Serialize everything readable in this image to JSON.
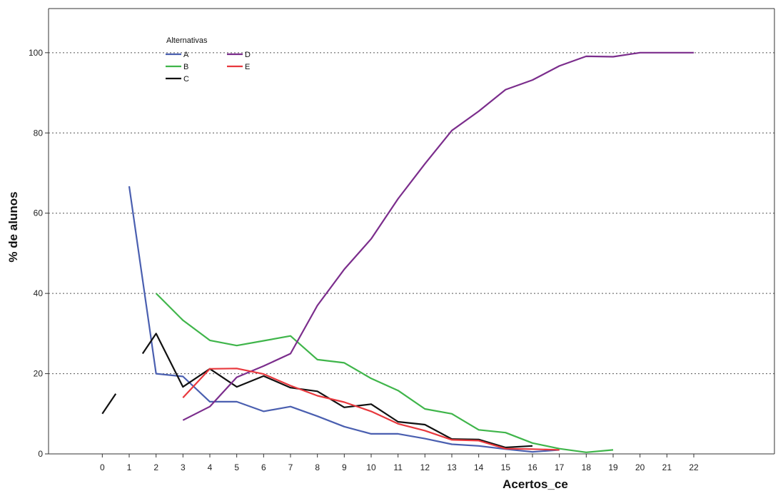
{
  "chart_data": {
    "type": "line",
    "xlabel": "Acertos_ce",
    "ylabel": "% de alunos",
    "x_ticks": [
      "0",
      "1",
      "2",
      "3",
      "4",
      "5",
      "6",
      "7",
      "8",
      "9",
      "10",
      "11",
      "12",
      "13",
      "14",
      "15",
      "16",
      "17",
      "18",
      "19",
      "20",
      "21",
      "22"
    ],
    "y_ticks": [
      "0",
      "20",
      "40",
      "60",
      "80",
      "100"
    ],
    "xlim": [
      -2,
      25
    ],
    "ylim": [
      0,
      111
    ],
    "grid": "horizontal dotted at y ticks",
    "legend": {
      "title": "Alternativas",
      "placement": "top-left"
    },
    "series": [
      {
        "name": "A",
        "color": "#4a5fb0",
        "segments": [
          [
            [
              1,
              66.7
            ],
            [
              2,
              20
            ],
            [
              3,
              19.3
            ],
            [
              4,
              13
            ],
            [
              5,
              13
            ],
            [
              6,
              10.6
            ],
            [
              7,
              11.8
            ],
            [
              8,
              9.4
            ],
            [
              9,
              6.8
            ],
            [
              10,
              5
            ],
            [
              11,
              5
            ],
            [
              12,
              3.8
            ],
            [
              13,
              2.4
            ],
            [
              14,
              2
            ],
            [
              15,
              1.2
            ],
            [
              16,
              0.5
            ],
            [
              17,
              1
            ]
          ]
        ]
      },
      {
        "name": "B",
        "color": "#3fb54a",
        "segments": [
          [
            [
              2,
              40
            ],
            [
              3,
              33.3
            ],
            [
              4,
              28.3
            ],
            [
              5,
              27
            ],
            [
              6,
              28.2
            ],
            [
              7,
              29.4
            ],
            [
              8,
              23.5
            ],
            [
              9,
              22.7
            ],
            [
              10,
              18.8
            ],
            [
              11,
              15.8
            ],
            [
              12,
              11.2
            ],
            [
              13,
              10
            ],
            [
              14,
              6
            ],
            [
              15,
              5.3
            ],
            [
              16,
              2.7
            ],
            [
              17,
              1.3
            ],
            [
              18,
              0.4
            ],
            [
              19,
              1
            ]
          ]
        ]
      },
      {
        "name": "C",
        "color": "#111111",
        "segments": [
          [
            [
              0,
              10
            ],
            [
              0.5,
              15
            ]
          ],
          [
            [
              1.5,
              25
            ],
            [
              2,
              30
            ],
            [
              3,
              16.7
            ],
            [
              4,
              21.2
            ],
            [
              5,
              16.7
            ],
            [
              6,
              19.4
            ],
            [
              7,
              16.5
            ],
            [
              8,
              15.6
            ],
            [
              9,
              11.6
            ],
            [
              10,
              12.4
            ],
            [
              11,
              8
            ],
            [
              12,
              7.3
            ],
            [
              13,
              3.7
            ],
            [
              14,
              3.6
            ],
            [
              15,
              1.6
            ],
            [
              16,
              2
            ]
          ]
        ]
      },
      {
        "name": "D",
        "color": "#7b2d8c",
        "segments": [
          [
            [
              3,
              8.4
            ],
            [
              4,
              11.8
            ],
            [
              5,
              19.1
            ],
            [
              6,
              21.9
            ],
            [
              7,
              25
            ],
            [
              8,
              37
            ],
            [
              9,
              46
            ],
            [
              10,
              53.6
            ],
            [
              11,
              63.6
            ],
            [
              12,
              72.3
            ],
            [
              13,
              80.6
            ],
            [
              14,
              85.4
            ],
            [
              15,
              90.8
            ],
            [
              16,
              93.2
            ],
            [
              17,
              96.7
            ],
            [
              18,
              99.1
            ],
            [
              19,
              99
            ],
            [
              20,
              100
            ],
            [
              21,
              100
            ],
            [
              22,
              100
            ]
          ]
        ]
      },
      {
        "name": "E",
        "color": "#e8383d",
        "segments": [
          [
            [
              3,
              14
            ],
            [
              4,
              21.2
            ],
            [
              5,
              21.3
            ],
            [
              6,
              19.9
            ],
            [
              7,
              17
            ],
            [
              8,
              14.5
            ],
            [
              9,
              12.9
            ],
            [
              10,
              10.6
            ],
            [
              11,
              7.5
            ],
            [
              12,
              5.8
            ],
            [
              13,
              3.5
            ],
            [
              14,
              3.3
            ],
            [
              15,
              1.3
            ],
            [
              16,
              1.2
            ],
            [
              17,
              1
            ]
          ]
        ]
      }
    ]
  }
}
